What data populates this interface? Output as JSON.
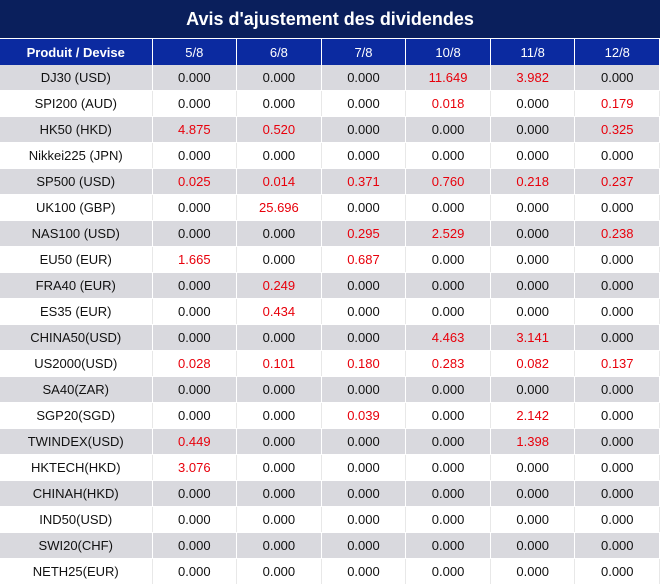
{
  "title": "Avis d'ajustement des dividendes",
  "header": {
    "product_col": "Produit / Devise",
    "dates": [
      "5/8",
      "6/8",
      "7/8",
      "10/8",
      "11/8",
      "12/8"
    ]
  },
  "colors": {
    "title_bg": "#0a1f5c",
    "header_bg": "#0b2aa0",
    "stripe_bg": "#d9d9de",
    "highlight_text": "#e8000b"
  },
  "rows": [
    {
      "product": "DJ30 (USD)",
      "values": [
        "0.000",
        "0.000",
        "0.000",
        "11.649",
        "3.982",
        "0.000"
      ]
    },
    {
      "product": "SPI200 (AUD)",
      "values": [
        "0.000",
        "0.000",
        "0.000",
        "0.018",
        "0.000",
        "0.179"
      ]
    },
    {
      "product": "HK50 (HKD)",
      "values": [
        "4.875",
        "0.520",
        "0.000",
        "0.000",
        "0.000",
        "0.325"
      ]
    },
    {
      "product": "Nikkei225 (JPN)",
      "values": [
        "0.000",
        "0.000",
        "0.000",
        "0.000",
        "0.000",
        "0.000"
      ]
    },
    {
      "product": "SP500 (USD)",
      "values": [
        "0.025",
        "0.014",
        "0.371",
        "0.760",
        "0.218",
        "0.237"
      ]
    },
    {
      "product": "UK100 (GBP)",
      "values": [
        "0.000",
        "25.696",
        "0.000",
        "0.000",
        "0.000",
        "0.000"
      ]
    },
    {
      "product": "NAS100 (USD)",
      "values": [
        "0.000",
        "0.000",
        "0.295",
        "2.529",
        "0.000",
        "0.238"
      ]
    },
    {
      "product": "EU50 (EUR)",
      "values": [
        "1.665",
        "0.000",
        "0.687",
        "0.000",
        "0.000",
        "0.000"
      ]
    },
    {
      "product": "FRA40 (EUR)",
      "values": [
        "0.000",
        "0.249",
        "0.000",
        "0.000",
        "0.000",
        "0.000"
      ]
    },
    {
      "product": "ES35 (EUR)",
      "values": [
        "0.000",
        "0.434",
        "0.000",
        "0.000",
        "0.000",
        "0.000"
      ]
    },
    {
      "product": "CHINA50(USD)",
      "values": [
        "0.000",
        "0.000",
        "0.000",
        "4.463",
        "3.141",
        "0.000"
      ]
    },
    {
      "product": "US2000(USD)",
      "values": [
        "0.028",
        "0.101",
        "0.180",
        "0.283",
        "0.082",
        "0.137"
      ]
    },
    {
      "product": "SA40(ZAR)",
      "values": [
        "0.000",
        "0.000",
        "0.000",
        "0.000",
        "0.000",
        "0.000"
      ]
    },
    {
      "product": "SGP20(SGD)",
      "values": [
        "0.000",
        "0.000",
        "0.039",
        "0.000",
        "2.142",
        "0.000"
      ]
    },
    {
      "product": "TWINDEX(USD)",
      "values": [
        "0.449",
        "0.000",
        "0.000",
        "0.000",
        "1.398",
        "0.000"
      ]
    },
    {
      "product": "HKTECH(HKD)",
      "values": [
        "3.076",
        "0.000",
        "0.000",
        "0.000",
        "0.000",
        "0.000"
      ]
    },
    {
      "product": "CHINAH(HKD)",
      "values": [
        "0.000",
        "0.000",
        "0.000",
        "0.000",
        "0.000",
        "0.000"
      ]
    },
    {
      "product": "IND50(USD)",
      "values": [
        "0.000",
        "0.000",
        "0.000",
        "0.000",
        "0.000",
        "0.000"
      ]
    },
    {
      "product": "SWI20(CHF)",
      "values": [
        "0.000",
        "0.000",
        "0.000",
        "0.000",
        "0.000",
        "0.000"
      ]
    },
    {
      "product": "NETH25(EUR)",
      "values": [
        "0.000",
        "0.000",
        "0.000",
        "0.000",
        "0.000",
        "0.000"
      ]
    }
  ]
}
